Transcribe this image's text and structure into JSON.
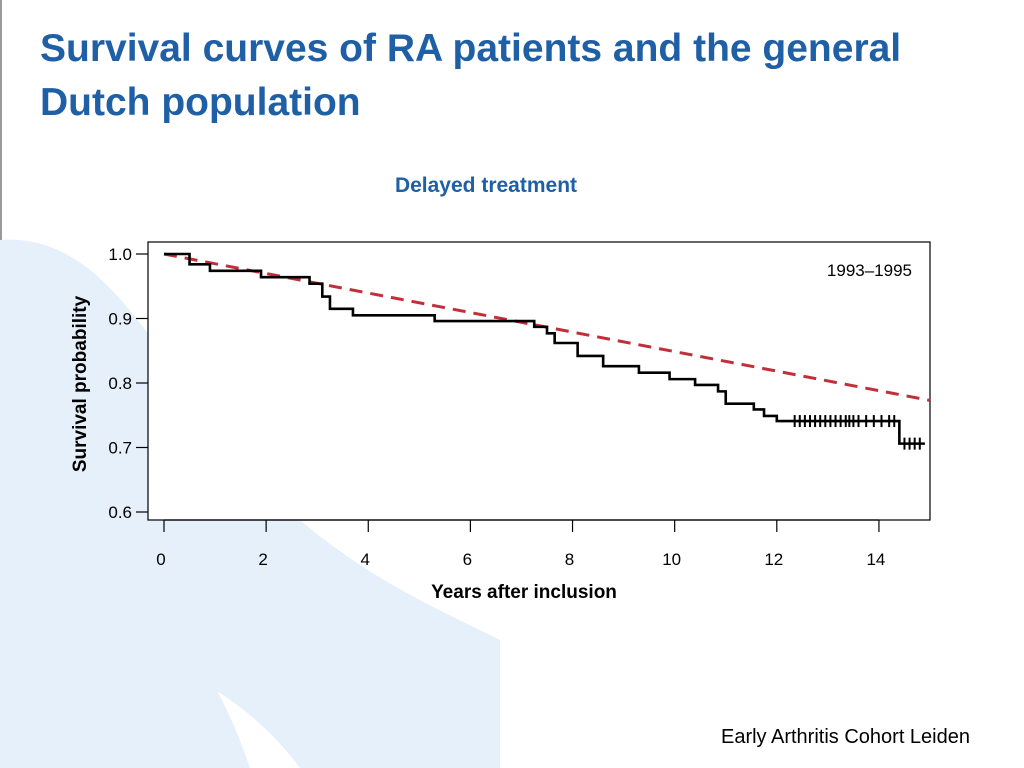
{
  "slide": {
    "title": "Survival curves of RA patients and the general Dutch population",
    "footer": "Early Arthritis Cohort Leiden"
  },
  "colors": {
    "title": "#1f5fa6",
    "decor": "#e6f0fa",
    "km_line": "#000000",
    "reference_line": "#c0303a"
  },
  "chart_data": {
    "type": "line",
    "title": "Delayed treatment",
    "xlabel": "Years after inclusion",
    "ylabel": "Survival probability",
    "xlim": [
      0,
      15
    ],
    "ylim": [
      0.6,
      1.0
    ],
    "xticks": [
      0,
      2,
      4,
      6,
      8,
      10,
      12,
      14
    ],
    "yticks": [
      0.6,
      0.7,
      0.8,
      0.9,
      1.0
    ],
    "ytick_labels": [
      "0.6",
      "0.7",
      "0.8",
      "0.9",
      "1.0"
    ],
    "grid": false,
    "annotation": "1993–1995",
    "series": [
      {
        "style": "step",
        "points": [
          [
            0,
            1.0
          ],
          [
            0.5,
            0.984
          ],
          [
            0.9,
            0.974
          ],
          [
            1.9,
            0.964
          ],
          [
            2.85,
            0.954
          ],
          [
            3.1,
            0.934
          ],
          [
            3.25,
            0.915
          ],
          [
            3.7,
            0.905
          ],
          [
            5.3,
            0.896
          ],
          [
            7.25,
            0.887
          ],
          [
            7.5,
            0.877
          ],
          [
            7.65,
            0.862
          ],
          [
            8.1,
            0.842
          ],
          [
            8.6,
            0.826
          ],
          [
            9.3,
            0.816
          ],
          [
            9.9,
            0.806
          ],
          [
            10.4,
            0.797
          ],
          [
            10.85,
            0.787
          ],
          [
            11.0,
            0.768
          ],
          [
            11.55,
            0.759
          ],
          [
            11.75,
            0.749
          ],
          [
            12.0,
            0.741
          ],
          [
            14.4,
            0.706
          ],
          [
            14.9,
            0.706
          ]
        ],
        "censor_marks": [
          [
            12.35,
            0.741
          ],
          [
            12.45,
            0.741
          ],
          [
            12.55,
            0.741
          ],
          [
            12.65,
            0.741
          ],
          [
            12.75,
            0.741
          ],
          [
            12.85,
            0.741
          ],
          [
            12.95,
            0.741
          ],
          [
            13.05,
            0.741
          ],
          [
            13.15,
            0.741
          ],
          [
            13.25,
            0.741
          ],
          [
            13.35,
            0.741
          ],
          [
            13.42,
            0.741
          ],
          [
            13.5,
            0.741
          ],
          [
            13.6,
            0.741
          ],
          [
            13.75,
            0.741
          ],
          [
            13.9,
            0.741
          ],
          [
            14.05,
            0.741
          ],
          [
            14.2,
            0.741
          ],
          [
            14.3,
            0.741
          ],
          [
            14.5,
            0.706
          ],
          [
            14.6,
            0.706
          ],
          [
            14.7,
            0.706
          ],
          [
            14.8,
            0.706
          ]
        ]
      },
      {
        "style": "dashed",
        "points": [
          [
            0,
            1.0
          ],
          [
            15,
            0.773
          ]
        ]
      }
    ]
  }
}
